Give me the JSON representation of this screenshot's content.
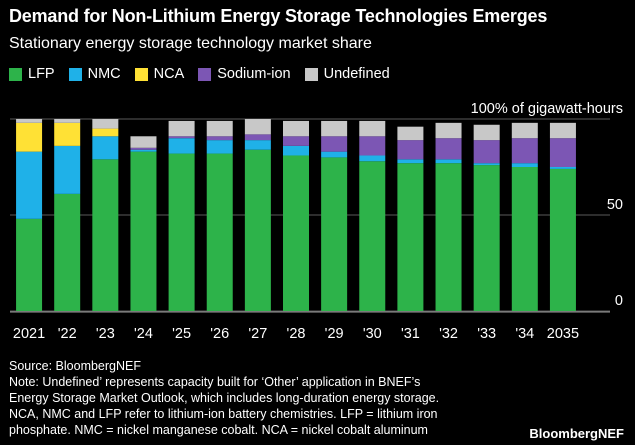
{
  "title": "Demand for Non-Lithium Energy Storage Technologies Emerges",
  "subtitle": "Stationary energy storage technology market share",
  "legend": [
    {
      "label": "LFP",
      "color": "#2db34a"
    },
    {
      "label": "NMC",
      "color": "#1fb1e8"
    },
    {
      "label": "NCA",
      "color": "#ffe135"
    },
    {
      "label": "Sodium-ion",
      "color": "#7c56b4"
    },
    {
      "label": "Undefined",
      "color": "#c8c8c8"
    }
  ],
  "chart_data": {
    "type": "bar",
    "stacked": true,
    "categories": [
      "2021",
      "'22",
      "'23",
      "'24",
      "'25",
      "'26",
      "'27",
      "'28",
      "'29",
      "'30",
      "'31",
      "'32",
      "'33",
      "'34",
      "2035"
    ],
    "series": [
      {
        "name": "LFP",
        "color": "#2db34a",
        "values": [
          48,
          61,
          79,
          83,
          82,
          82,
          84,
          81,
          80,
          78,
          77,
          77,
          76,
          75,
          74
        ]
      },
      {
        "name": "NMC",
        "color": "#1fb1e8",
        "values": [
          35,
          25,
          12,
          1,
          8,
          7,
          5,
          5,
          3,
          3,
          2,
          2,
          1,
          2,
          1
        ]
      },
      {
        "name": "NCA",
        "color": "#ffe135",
        "values": [
          15,
          12,
          4,
          0,
          0,
          0,
          0,
          0,
          0,
          0,
          0,
          0,
          0,
          0,
          0
        ]
      },
      {
        "name": "Sodium-ion",
        "color": "#7c56b4",
        "values": [
          0,
          0,
          0,
          1,
          1,
          2,
          3,
          5,
          8,
          10,
          10,
          11,
          12,
          13,
          15
        ]
      },
      {
        "name": "Undefined",
        "color": "#c8c8c8",
        "values": [
          2,
          2,
          5,
          6,
          8,
          8,
          8,
          8,
          8,
          8,
          7,
          8,
          8,
          8,
          8
        ]
      }
    ],
    "y_axis": {
      "position": "right",
      "ylim": [
        0,
        100
      ],
      "ticks": [
        0,
        50,
        100
      ],
      "tick_labels": [
        "0",
        "50",
        "100% of gigawatt-hours"
      ]
    },
    "grid": true
  },
  "footer": {
    "source": "Source: BloombergNEF",
    "note_lines": [
      "Note: Undefined’ represents capacity built for ‘Other’ application in BNEF’s",
      "Energy Storage Market Outlook, which includes long-duration energy storage.",
      "NCA, NMC and LFP refer to lithium-ion battery chemistries. LFP = lithium iron",
      "phosphate. NMC = nickel manganese cobalt. NCA = nickel cobalt aluminum"
    ]
  },
  "brand": "BloombergNEF"
}
